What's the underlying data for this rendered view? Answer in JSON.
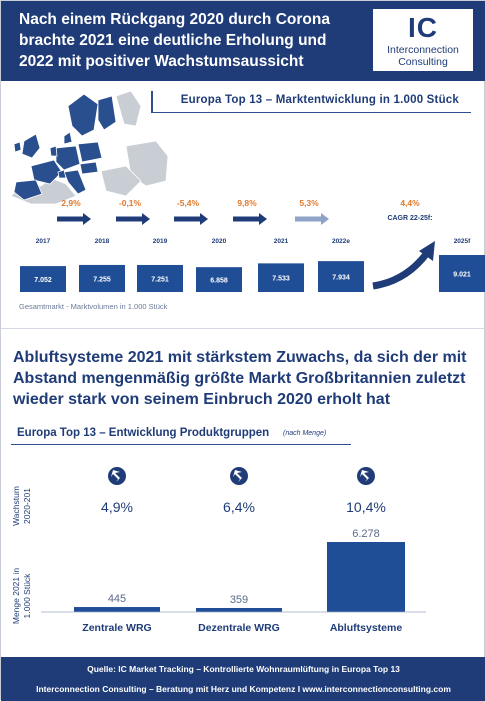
{
  "header": {
    "title": "Nach einem Rückgang 2020 durch Corona brachte 2021 eine deutliche Erholung und 2022 mit positiver Wachstumsaussicht",
    "logo_mark": "IC",
    "logo_line1": "Interconnection",
    "logo_line2": "Consulting"
  },
  "colors": {
    "brand": "#1f3c78",
    "growth_positive": "#e07a2e",
    "bar": "#1f4e96",
    "bar_projection": "#1f4e96"
  },
  "top_section": {
    "subheading": "Europa Top 13 – Marktentwicklung in 1.000 Stück",
    "caption": "Gesamtmarkt - Marktvolumen in 1.000 Stück"
  },
  "chart_data": [
    {
      "type": "bar",
      "title": "Europa Top 13 – Marktentwicklung in 1.000 Stück",
      "categories": [
        "2017",
        "2018",
        "2019",
        "2020",
        "2021",
        "2022e",
        "2025f"
      ],
      "values": [
        7052,
        7255,
        7251,
        6858,
        7533,
        7934,
        9021
      ],
      "value_labels": [
        "7.052",
        "7.255",
        "7.251",
        "6.858",
        "7.533",
        "7.934",
        "9.021"
      ],
      "growth_labels": [
        "2,9%",
        "-0,1%",
        "-5,4%",
        "9,8%",
        "5,3%"
      ],
      "cagr_value": "4,4%",
      "cagr_label": "CAGR 22-25f:",
      "ylabel": "Gesamtmarkt - Marktvolumen in 1.000 Stück"
    },
    {
      "type": "bar",
      "title": "Europa Top 13 – Entwicklung Produktgruppen",
      "title_note": "(nach Menge)",
      "categories": [
        "Zentrale WRG",
        "Dezentrale WRG",
        "Abluftsysteme"
      ],
      "values": [
        445,
        359,
        6278
      ],
      "value_labels": [
        "445",
        "359",
        "6.278"
      ],
      "growth_values": [
        "4,9%",
        "6,4%",
        "10,4%"
      ],
      "growth_ylabel": "Wachstum 2020-201",
      "volume_ylabel": "Menge 2021 in 1.000 Stück"
    }
  ],
  "bottom_section": {
    "headline": "Abluftsysteme 2021 mit stärkstem Zuwachs, da sich der mit Abstand mengenmäßig größte Markt Großbritannien zuletzt wieder stark von seinem Einbruch 2020 erholt hat",
    "subheading": "Europa Top 13 – Entwicklung Produktgruppen",
    "subheading_note": "(nach Menge)",
    "growth_label_line1": "Wachstum",
    "growth_label_line2": "2020-201",
    "volume_label_line1": "Menge 2021 in",
    "volume_label_line2": "1.000 Stück"
  },
  "footer": {
    "line1": "Quelle: IC Market Tracking – Kontrollierte Wohnraumlüftung in Europa Top 13",
    "line2": "Interconnection Consulting – Beratung mit Herz und Kompetenz  I  www.interconnectionconsulting.com"
  }
}
